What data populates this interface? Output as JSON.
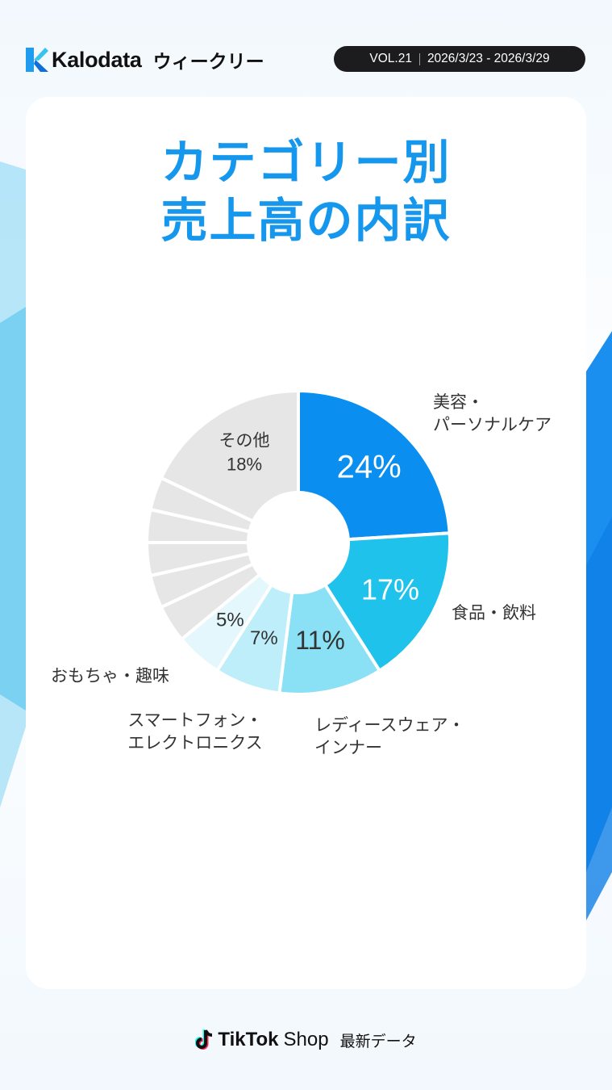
{
  "header": {
    "brand": "Kalodata",
    "weekly_label": "ウィークリー",
    "volume": "VOL.21",
    "date_range": "2026/3/23 - 2026/3/29"
  },
  "title": {
    "line1": "カテゴリー別",
    "line2": "売上高の内訳"
  },
  "chart_data": {
    "type": "pie",
    "style": "donut",
    "title": "カテゴリー別売上高の内訳",
    "slices": [
      {
        "label": [
          "美容・",
          "パーソナルケア"
        ],
        "value": 24,
        "value_label": "24%",
        "color": "#0a8ff0",
        "text_color": "#ffffff"
      },
      {
        "label": [
          "食品・飲料"
        ],
        "value": 17,
        "value_label": "17%",
        "color": "#1ec2ea",
        "text_color": "#ffffff"
      },
      {
        "label": [
          "レディースウェア・",
          "インナー"
        ],
        "value": 11,
        "value_label": "11%",
        "color": "#8ae0f4",
        "text_color": "#333333"
      },
      {
        "label": [
          "スマートフォン・",
          "エレクトロニクス"
        ],
        "value": 7,
        "value_label": "7%",
        "color": "#bdeef9",
        "text_color": "#333333"
      },
      {
        "label": [
          "おもちゃ・趣味"
        ],
        "value": 5,
        "value_label": "5%",
        "color": "#e3f7fd",
        "text_color": "#333333"
      },
      {
        "label": [],
        "value": 4,
        "value_label": "",
        "color": "#e6e6e6"
      },
      {
        "label": [],
        "value": 3.5,
        "value_label": "",
        "color": "#e6e6e6"
      },
      {
        "label": [],
        "value": 3.5,
        "value_label": "",
        "color": "#e6e6e6"
      },
      {
        "label": [],
        "value": 3.5,
        "value_label": "",
        "color": "#e6e6e6"
      },
      {
        "label": [],
        "value": 3.5,
        "value_label": "",
        "color": "#e6e6e6"
      },
      {
        "label": [
          "その他"
        ],
        "value": 18,
        "value_label": "18%",
        "color": "#e6e6e6",
        "text_color": "#333333"
      }
    ]
  },
  "footer": {
    "brand": "TikTok",
    "shop": "Shop",
    "latest": "最新データ"
  }
}
